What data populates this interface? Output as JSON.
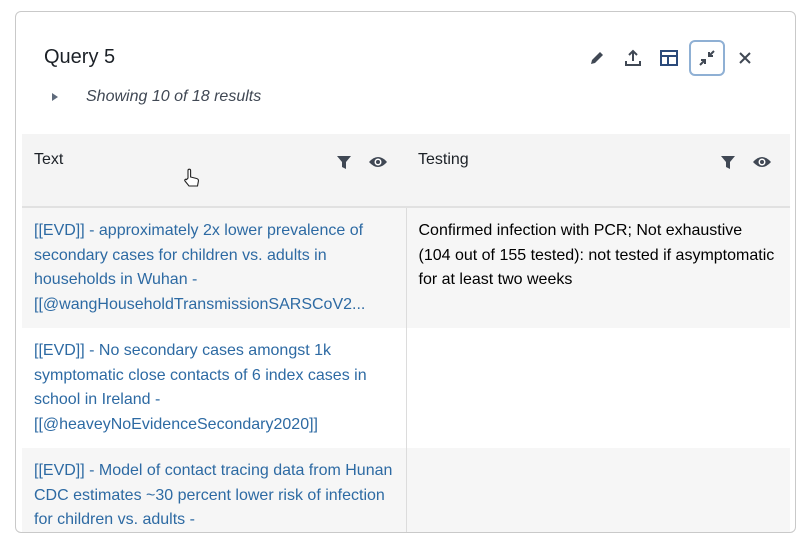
{
  "panel": {
    "title": "Query 5",
    "results": "Showing 10 of 18 results"
  },
  "toolbar": [
    "edit-icon",
    "export-icon",
    "layout-icon",
    "minimize-icon",
    "close-icon"
  ],
  "columns": [
    {
      "label": "Text"
    },
    {
      "label": "Testing"
    }
  ],
  "rows": [
    {
      "text": "[[EVD]] - approximately 2x lower prevalence of secondary cases for children vs. adults in households in Wuhan - [[@wangHouseholdTransmissionSARSCoV2...",
      "testing": "Confirmed infection with PCR; Not exhaustive (104 out of 155 tested): not tested if asymptomatic for at least two weeks"
    },
    {
      "text": "[[EVD]] - No secondary cases amongst 1k symptomatic close contacts of 6 index cases in school in Ireland - [[@heaveyNoEvidenceSecondary2020]]",
      "testing": ""
    },
    {
      "text": "[[EVD]] - Model of contact tracing data from Hunan CDC estimates ~30 percent lower risk of infection for children vs. adults -",
      "testing": ""
    }
  ],
  "colors": {
    "link": "#2d6aa3",
    "header_bg": "#f4f4f4",
    "active_border": "#8fb0d4"
  }
}
